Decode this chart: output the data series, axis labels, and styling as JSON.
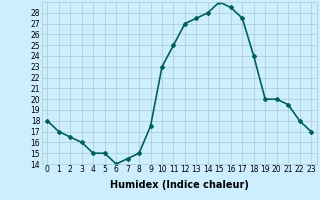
{
  "x": [
    0,
    1,
    2,
    3,
    4,
    5,
    6,
    7,
    8,
    9,
    10,
    11,
    12,
    13,
    14,
    15,
    16,
    17,
    18,
    19,
    20,
    21,
    22,
    23
  ],
  "y": [
    18,
    17,
    16.5,
    16,
    15,
    15,
    14,
    14.5,
    15,
    17.5,
    23,
    25,
    27,
    27.5,
    28,
    29,
    28.5,
    27.5,
    24,
    20,
    20,
    19.5,
    18,
    17
  ],
  "line_color": "#006060",
  "marker": "D",
  "marker_size": 2,
  "bg_color": "#cceeff",
  "grid_color": "#aacccc",
  "xlabel": "Humidex (Indice chaleur)",
  "xlabel_fontsize": 7,
  "ylabel_fontsize": 6,
  "ylim": [
    14,
    29
  ],
  "xlim": [
    -0.5,
    23.5
  ],
  "yticks": [
    14,
    15,
    16,
    17,
    18,
    19,
    20,
    21,
    22,
    23,
    24,
    25,
    26,
    27,
    28
  ],
  "xticks": [
    0,
    1,
    2,
    3,
    4,
    5,
    6,
    7,
    8,
    9,
    10,
    11,
    12,
    13,
    14,
    15,
    16,
    17,
    18,
    19,
    20,
    21,
    22,
    23
  ],
  "tick_fontsize": 5.5,
  "linewidth": 1.2
}
